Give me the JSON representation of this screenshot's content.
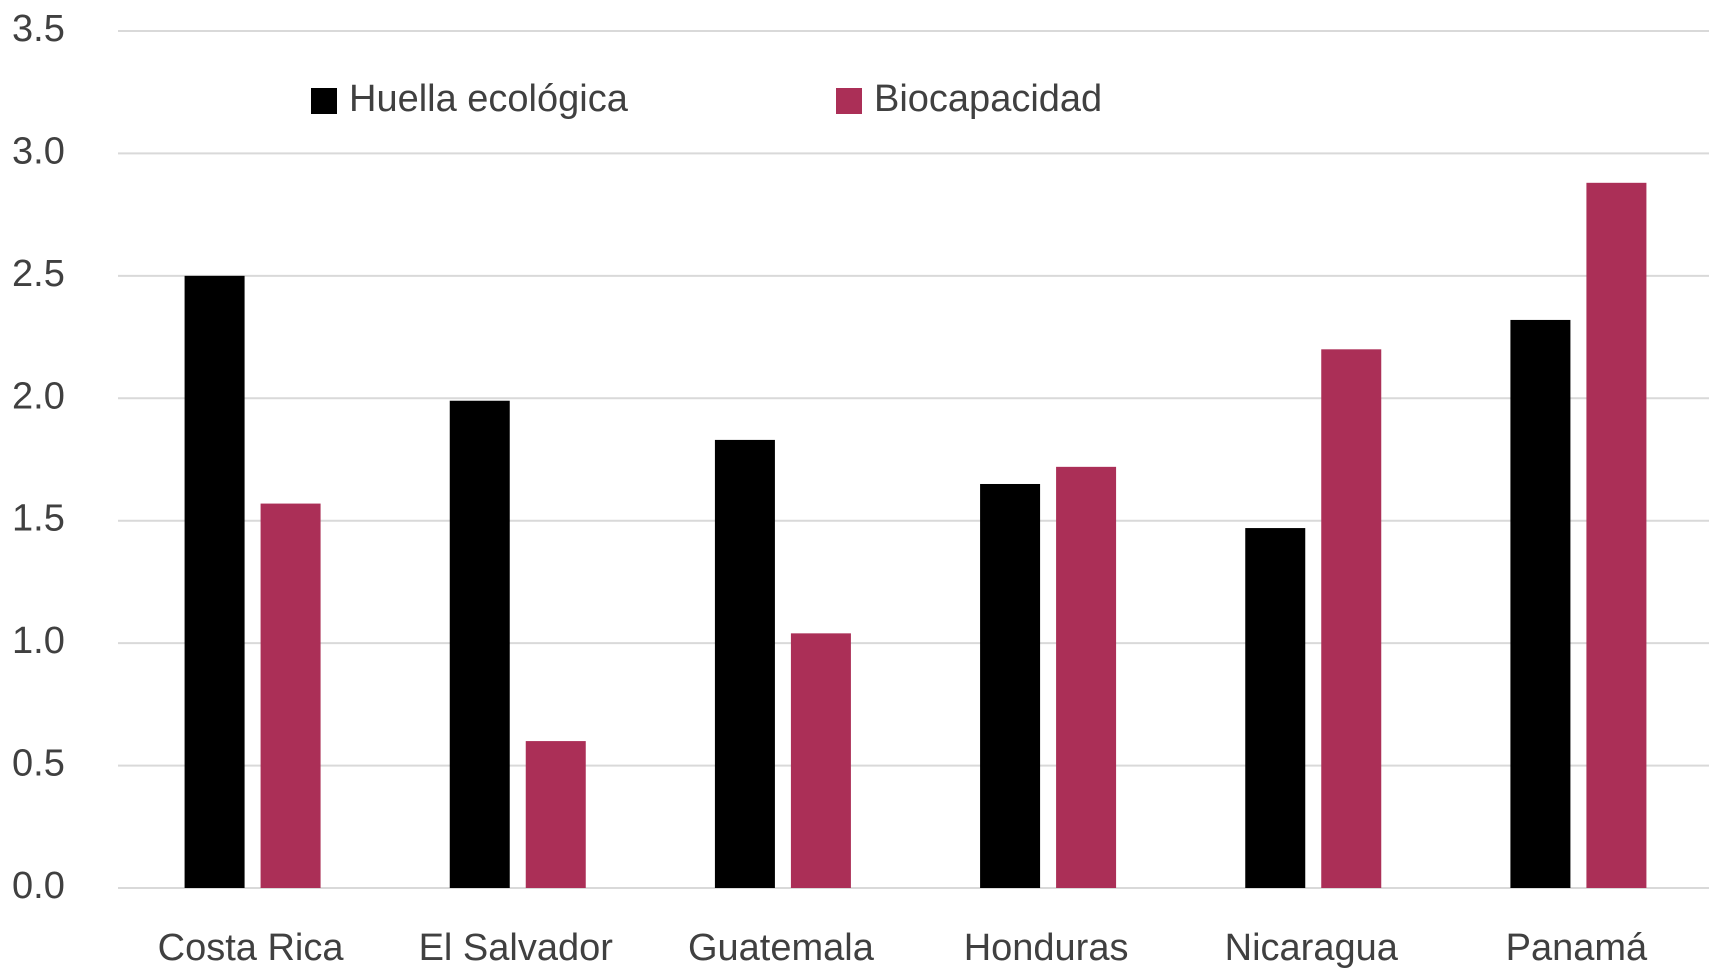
{
  "chart_data": {
    "type": "bar",
    "categories": [
      "Costa Rica",
      "El Salvador",
      "Guatemala",
      "Honduras",
      "Nicaragua",
      "Panamá"
    ],
    "series": [
      {
        "name": "Huella ecológica",
        "color": "#000000",
        "values": [
          2.5,
          1.99,
          1.83,
          1.65,
          1.47,
          2.32
        ]
      },
      {
        "name": "Biocapacidad",
        "color": "#ab2f57",
        "values": [
          1.57,
          0.6,
          1.04,
          1.72,
          2.2,
          2.88
        ]
      }
    ],
    "ylim": [
      0,
      3.5
    ],
    "yticks": [
      {
        "value": 0,
        "label": "0.0"
      },
      0.5,
      {
        "value": 1,
        "label": "1.0"
      },
      1.5,
      {
        "value": 2,
        "label": "2.0"
      },
      2.5,
      {
        "value": 3,
        "label": "3.0"
      },
      3.5
    ],
    "grid": true
  }
}
